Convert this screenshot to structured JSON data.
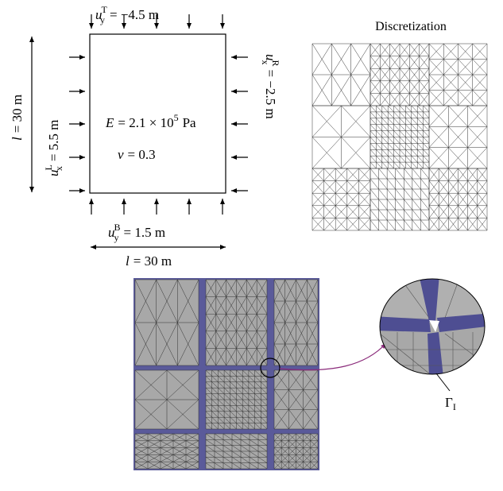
{
  "top_load": {
    "symbol": "u",
    "sub": "y",
    "sup": "T",
    "value": "= −4.5 m"
  },
  "left_load": {
    "symbol": "u",
    "sub": "x",
    "sup": "L",
    "value": "= 5.5 m"
  },
  "right_load": {
    "symbol": "u",
    "sub": "x",
    "sup": "R",
    "value": "= −2.5 m"
  },
  "bottom_load": {
    "symbol": "u",
    "sub": "y",
    "sup": "B",
    "value": "= 1.5 m"
  },
  "height_dim": {
    "symbol": "l",
    "value": "= 30 m"
  },
  "width_dim": {
    "symbol": "l",
    "value": "= 30 m"
  },
  "modulus": {
    "symbol": "E",
    "value": "= 2.1 × 10",
    "exp": "5",
    "unit": "Pa"
  },
  "poisson": {
    "symbol": "ν",
    "value": "= 0.3"
  },
  "discretization_title": "Discretization",
  "interface_label": {
    "symbol": "Γ",
    "sub": "I"
  }
}
